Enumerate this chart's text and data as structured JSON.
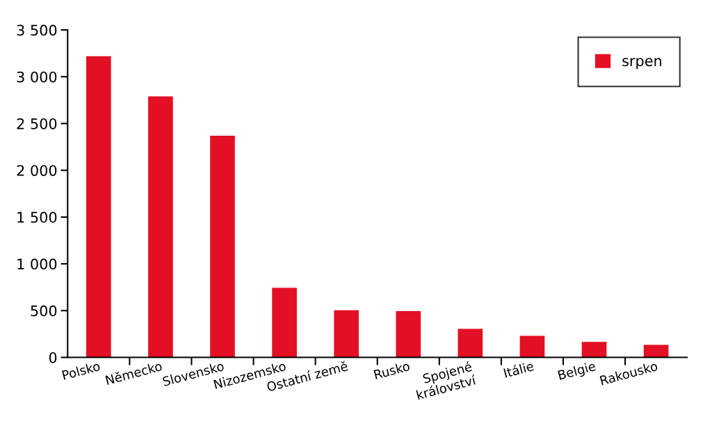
{
  "chart_data": {
    "type": "bar",
    "categories": [
      "Polsko",
      "Německo",
      "Slovensko",
      "Nizozemsko",
      "Ostatní země",
      "Rusko",
      "Spojené\nkrálovství",
      "Itálie",
      "Belgie",
      "Rakousko"
    ],
    "series": [
      {
        "name": "srpen",
        "color": "#e30f24",
        "values": [
          3220,
          2790,
          2370,
          745,
          505,
          495,
          305,
          230,
          165,
          135
        ]
      }
    ],
    "ylim": [
      0,
      3500
    ],
    "yticks": [
      {
        "value": 0,
        "label": "0"
      },
      {
        "value": 500,
        "label": "500"
      },
      {
        "value": 1000,
        "label": "1 000"
      },
      {
        "value": 1500,
        "label": "1 500"
      },
      {
        "value": 2000,
        "label": "2 000"
      },
      {
        "value": 2500,
        "label": "2 500"
      },
      {
        "value": 3000,
        "label": "3 000"
      },
      {
        "value": 3500,
        "label": "3 500"
      }
    ],
    "grid": false,
    "legend": "top right"
  }
}
